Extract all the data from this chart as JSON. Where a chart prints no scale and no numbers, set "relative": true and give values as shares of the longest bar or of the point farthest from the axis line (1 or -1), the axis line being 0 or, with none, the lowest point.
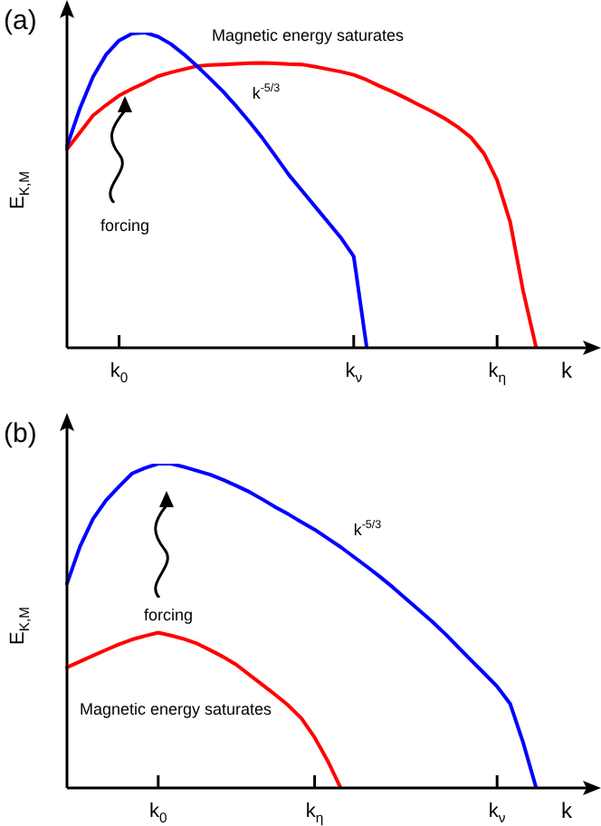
{
  "chart_data": [
    {
      "type": "line",
      "title": "(a)",
      "xlabel": "k",
      "ylabel": "E$_{K,M}$",
      "relative": true,
      "legend": false,
      "marker": "none",
      "line_style": "solid",
      "categories": [
        null,
        null,
        null,
        null,
        "k$_{0}$",
        null,
        null,
        null,
        null,
        null,
        null,
        null,
        null,
        null,
        null,
        null,
        null,
        null,
        null,
        null,
        null,
        null,
        "k$_{ν}$",
        null,
        null,
        null,
        null,
        null,
        null,
        null,
        null,
        null,
        null,
        "k$_{η}$",
        null,
        null,
        null,
        null,
        null,
        null,
        null
      ],
      "annotations": [
        "Magnetic energy saturates",
        "k$^{-5/3}$",
        "forcing"
      ],
      "series": [
        {
          "color": "#0000ff",
          "values": [
            0.64,
            0.76,
            0.86,
            0.93,
            0.975,
            0.997,
            1.0,
            0.987,
            0.963,
            0.93,
            0.893,
            0.853,
            0.812,
            0.766,
            0.717,
            0.665,
            0.608,
            0.55,
            0.5,
            0.45,
            0.4,
            0.35,
            0.29,
            0,
            null,
            null,
            null,
            null,
            null,
            null,
            null,
            null,
            null,
            null,
            null,
            null,
            null,
            null,
            null,
            null,
            null
          ]
        },
        {
          "color": "#ff0000",
          "values": [
            0.63,
            0.683,
            0.737,
            0.77,
            0.8,
            0.822,
            0.841,
            0.862,
            0.874,
            0.884,
            0.894,
            0.897,
            0.899,
            0.901,
            0.903,
            0.904,
            0.902,
            0.9,
            0.899,
            0.892,
            0.884,
            0.876,
            0.866,
            0.85,
            0.83,
            0.812,
            0.792,
            0.771,
            0.75,
            0.727,
            0.7,
            0.667,
            0.616,
            0.532,
            0.4,
            0.18,
            0,
            null,
            null,
            null,
            null
          ]
        }
      ]
    },
    {
      "type": "line",
      "title": "(b)",
      "xlabel": "k",
      "ylabel": "E$_{K,M}$",
      "relative": true,
      "legend": false,
      "marker": "none",
      "line_style": "solid",
      "categories": [
        null,
        null,
        null,
        null,
        null,
        null,
        null,
        "k$_{0}$",
        null,
        null,
        null,
        null,
        null,
        null,
        null,
        null,
        null,
        null,
        null,
        "k$_{η}$",
        null,
        null,
        null,
        null,
        null,
        null,
        null,
        null,
        null,
        null,
        null,
        null,
        null,
        "k$_{ν}$",
        null,
        null,
        null,
        null,
        null,
        null,
        null
      ],
      "annotations": [
        "Magnetic energy saturates",
        "k$^{-5/3}$",
        "forcing"
      ],
      "series": [
        {
          "color": "#0000ff",
          "values": [
            0.63,
            0.745,
            0.83,
            0.887,
            0.93,
            0.97,
            0.987,
            1.0,
            1.0,
            0.99,
            0.978,
            0.966,
            0.95,
            0.932,
            0.913,
            0.89,
            0.866,
            0.844,
            0.82,
            0.797,
            0.77,
            0.743,
            0.713,
            0.683,
            0.652,
            0.619,
            0.584,
            0.549,
            0.514,
            0.476,
            0.435,
            0.394,
            0.354,
            0.313,
            0.26,
            0.14,
            0,
            null,
            null,
            null,
            null
          ]
        },
        {
          "color": "#ff0000",
          "values": [
            0.372,
            0.39,
            0.408,
            0.426,
            0.443,
            0.458,
            0.469,
            0.479,
            0.47,
            0.459,
            0.445,
            0.425,
            0.404,
            0.38,
            0.349,
            0.318,
            0.287,
            0.254,
            0.214,
            0.156,
            0.084,
            0,
            null,
            null,
            null,
            null,
            null,
            null,
            null,
            null,
            null,
            null,
            null,
            null,
            null,
            null,
            null,
            null,
            null,
            null,
            null
          ]
        }
      ]
    }
  ]
}
